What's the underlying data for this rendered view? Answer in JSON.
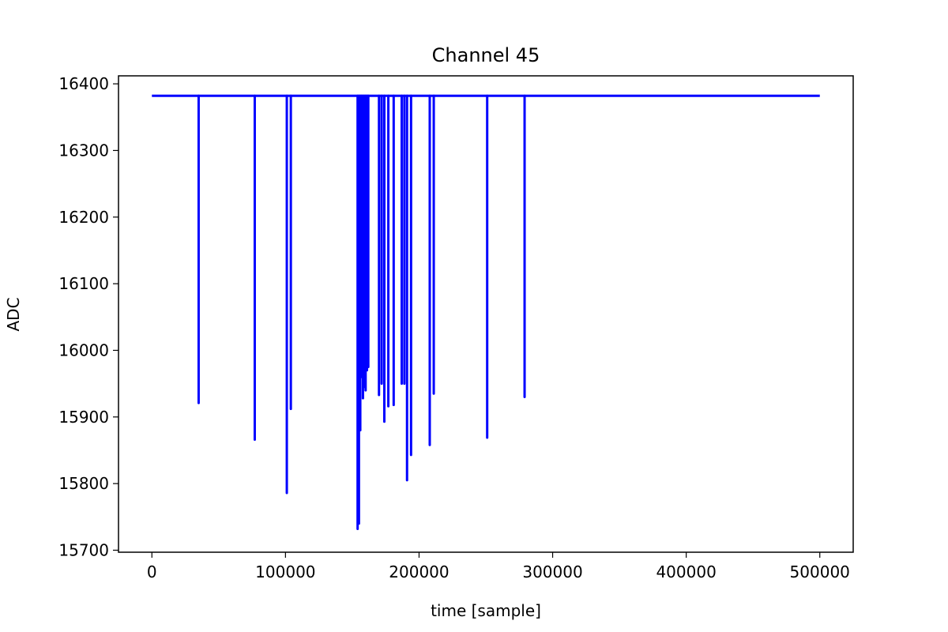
{
  "chart_data": {
    "type": "line",
    "title": "Channel 45",
    "xlabel": "time [sample]",
    "ylabel": "ADC",
    "xlim": [
      -25000,
      525000
    ],
    "ylim": [
      15697,
      16412
    ],
    "xticks": [
      0,
      100000,
      200000,
      300000,
      400000,
      500000
    ],
    "yticks": [
      15700,
      15800,
      15900,
      16000,
      16100,
      16200,
      16300,
      16400
    ],
    "grid": false,
    "series": [
      {
        "color": "#0000ff",
        "baseline": 16382,
        "x_range": [
          0,
          500000
        ],
        "dips": [
          {
            "x": 35000,
            "min": 15921
          },
          {
            "x": 77000,
            "min": 15866
          },
          {
            "x": 101000,
            "min": 15786
          },
          {
            "x": 104000,
            "min": 15912
          },
          {
            "x": 154000,
            "min": 15732
          },
          {
            "x": 155000,
            "min": 15740
          },
          {
            "x": 156000,
            "min": 15880
          },
          {
            "x": 157000,
            "min": 15960
          },
          {
            "x": 158000,
            "min": 15928
          },
          {
            "x": 159000,
            "min": 15945
          },
          {
            "x": 160000,
            "min": 15940
          },
          {
            "x": 161000,
            "min": 15970
          },
          {
            "x": 162000,
            "min": 15975
          },
          {
            "x": 170000,
            "min": 15933
          },
          {
            "x": 172000,
            "min": 15950
          },
          {
            "x": 174000,
            "min": 15893
          },
          {
            "x": 177000,
            "min": 15916
          },
          {
            "x": 181000,
            "min": 15918
          },
          {
            "x": 187000,
            "min": 15950
          },
          {
            "x": 189000,
            "min": 15950
          },
          {
            "x": 191000,
            "min": 15805
          },
          {
            "x": 194000,
            "min": 15843
          },
          {
            "x": 208000,
            "min": 15858
          },
          {
            "x": 211000,
            "min": 15935
          },
          {
            "x": 251000,
            "min": 15869
          },
          {
            "x": 279000,
            "min": 15930
          }
        ]
      }
    ]
  }
}
